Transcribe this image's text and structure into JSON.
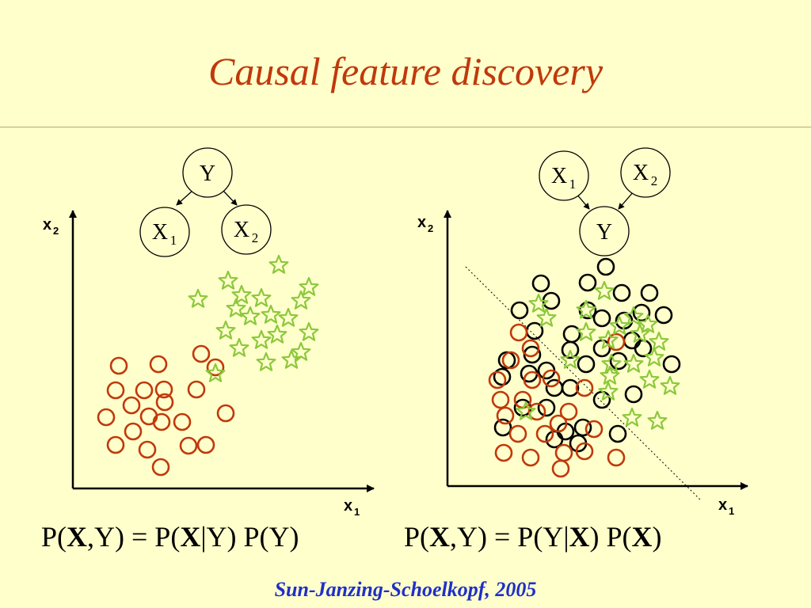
{
  "title": "Causal feature discovery",
  "colors": {
    "background": "#FFFFCC",
    "title": "#C0390B",
    "class_circle": "#C0390B",
    "class_star": "#8CC83C",
    "other_circle": "#000000",
    "citation": "#1E2FC8"
  },
  "left_graph": {
    "nodes": [
      {
        "id": "Y",
        "label": "Y",
        "sub": ""
      },
      {
        "id": "X1",
        "label": "X",
        "sub": "1"
      },
      {
        "id": "X2",
        "label": "X",
        "sub": "2"
      }
    ],
    "edges": [
      [
        "Y",
        "X1"
      ],
      [
        "Y",
        "X2"
      ]
    ]
  },
  "right_graph": {
    "nodes": [
      {
        "id": "X1",
        "label": "X",
        "sub": "1"
      },
      {
        "id": "X2",
        "label": "X",
        "sub": "2"
      },
      {
        "id": "Y",
        "label": "Y",
        "sub": ""
      }
    ],
    "edges": [
      [
        "X1",
        "Y"
      ],
      [
        "X2",
        "Y"
      ]
    ]
  },
  "axes": {
    "x_label": "x",
    "x_sub": "1",
    "y_label": "x",
    "y_sub": "2"
  },
  "formula_left": {
    "p1": "P(",
    "x1": "X",
    "p2": ",Y) = P(",
    "x2": "X",
    "p3": "|Y) P(Y)"
  },
  "formula_right": {
    "p1": "P(",
    "x1": "X",
    "p2": ",Y) = P(Y|",
    "x2": "X",
    "p3": ") P(",
    "x3": "X",
    "p4": ")"
  },
  "citation": "Sun-Janzing-Schoelkopf, 2005"
}
